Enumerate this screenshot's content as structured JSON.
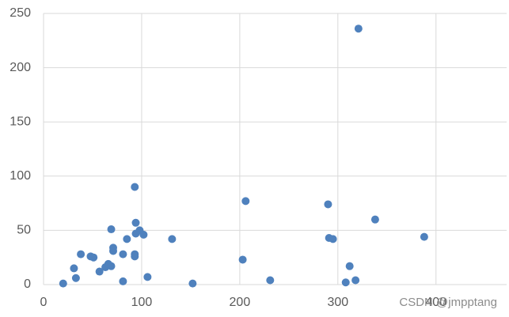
{
  "chart_data": {
    "type": "scatter",
    "x": [
      20,
      31,
      33,
      38,
      48,
      51,
      57,
      63,
      66,
      69,
      69,
      71,
      71,
      81,
      81,
      85,
      93,
      93,
      93,
      94,
      94,
      98,
      102,
      106,
      131,
      152,
      203,
      206,
      231,
      290,
      291,
      295,
      308,
      312,
      318,
      321,
      338,
      388
    ],
    "values": [
      1,
      15,
      6,
      28,
      26,
      25,
      12,
      16,
      19,
      51,
      17,
      31,
      34,
      28,
      3,
      42,
      90,
      28,
      26,
      57,
      47,
      50,
      46,
      7,
      42,
      1,
      23,
      77,
      4,
      74,
      43,
      42,
      2,
      17,
      4,
      236,
      60,
      44
    ],
    "color": "#4f81bd",
    "xlim": [
      0,
      472
    ],
    "xticks": [
      0,
      100,
      200,
      300,
      400
    ],
    "ylim": [
      0,
      250
    ],
    "yticks": [
      0,
      50,
      100,
      150,
      200,
      250
    ],
    "grid": true
  },
  "watermark": "CSDN @jmpptang"
}
